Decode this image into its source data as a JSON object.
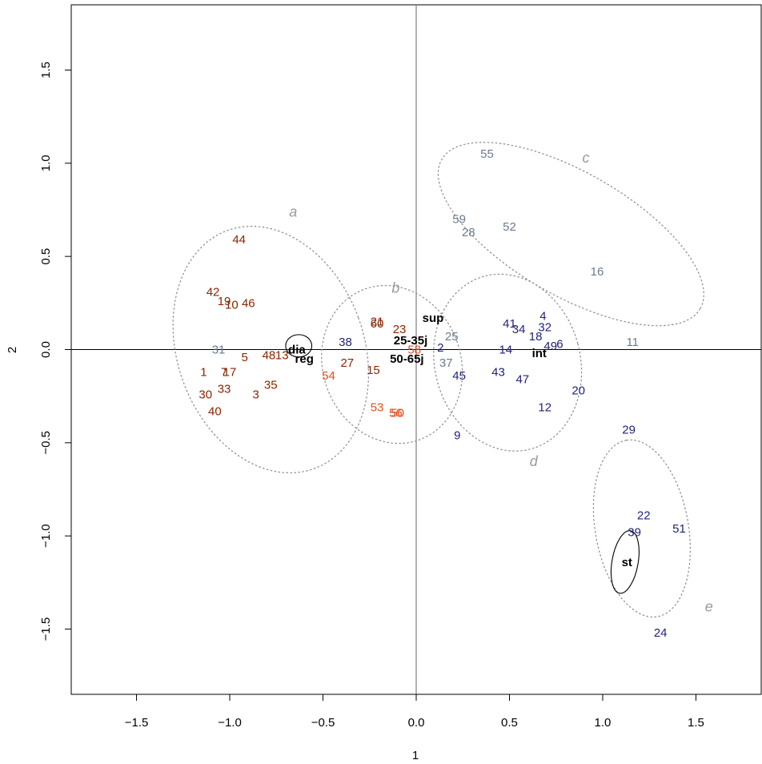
{
  "chart_data": {
    "type": "scatter",
    "xlabel": "1",
    "ylabel": "2",
    "xlim": [
      -1.85,
      1.85
    ],
    "ylim": [
      -1.85,
      1.85
    ],
    "xticks": [
      -1.5,
      -1.0,
      -0.5,
      0.0,
      0.5,
      1.0,
      1.5
    ],
    "yticks": [
      -1.5,
      -1.0,
      -0.5,
      0.0,
      0.5,
      1.0,
      1.5
    ],
    "xtick_labels": [
      "−1.5",
      "−1.0",
      "−0.5",
      "0.0",
      "0.5",
      "1.0",
      "1.5"
    ],
    "ytick_labels": [
      "−1.5",
      "−1.0",
      "−0.5",
      "0.0",
      "0.5",
      "1.0",
      "1.5"
    ],
    "grid": false,
    "reference_lines": {
      "x": 0,
      "y": 0
    },
    "colors": {
      "dark_red": "#8b2500",
      "orange_red": "#e2501d",
      "slate": "#6c7c90",
      "navy": "#23237a",
      "group_ellipse": "#8c8c8c",
      "group_label": "#9a9a9a",
      "variable": "#000000"
    },
    "points": [
      {
        "label": "44",
        "x": -0.95,
        "y": 0.59,
        "color": "dark_red"
      },
      {
        "label": "42",
        "x": -1.09,
        "y": 0.31,
        "color": "dark_red"
      },
      {
        "label": "19",
        "x": -1.03,
        "y": 0.26,
        "color": "dark_red"
      },
      {
        "label": "10",
        "x": -0.99,
        "y": 0.24,
        "color": "dark_red"
      },
      {
        "label": "46",
        "x": -0.9,
        "y": 0.25,
        "color": "dark_red"
      },
      {
        "label": "5",
        "x": -0.92,
        "y": -0.04,
        "color": "dark_red"
      },
      {
        "label": "48",
        "x": -0.79,
        "y": -0.03,
        "color": "dark_red"
      },
      {
        "label": "13",
        "x": -0.72,
        "y": -0.03,
        "color": "dark_red"
      },
      {
        "label": "1",
        "x": -1.14,
        "y": -0.12,
        "color": "dark_red"
      },
      {
        "label": "7",
        "x": -1.03,
        "y": -0.12,
        "color": "dark_red"
      },
      {
        "label": "17",
        "x": -1.0,
        "y": -0.12,
        "color": "dark_red"
      },
      {
        "label": "30",
        "x": -1.13,
        "y": -0.24,
        "color": "dark_red"
      },
      {
        "label": "33",
        "x": -1.03,
        "y": -0.21,
        "color": "dark_red"
      },
      {
        "label": "3",
        "x": -0.86,
        "y": -0.24,
        "color": "dark_red"
      },
      {
        "label": "35",
        "x": -0.78,
        "y": -0.19,
        "color": "dark_red"
      },
      {
        "label": "40",
        "x": -1.08,
        "y": -0.33,
        "color": "dark_red"
      },
      {
        "label": "31",
        "x": -1.06,
        "y": 0.0,
        "color": "slate"
      },
      {
        "label": "21",
        "x": -0.21,
        "y": 0.15,
        "color": "dark_red"
      },
      {
        "label": "60",
        "x": -0.21,
        "y": 0.14,
        "color": "dark_red"
      },
      {
        "label": "23",
        "x": -0.09,
        "y": 0.11,
        "color": "dark_red"
      },
      {
        "label": "27",
        "x": -0.37,
        "y": -0.07,
        "color": "dark_red"
      },
      {
        "label": "15",
        "x": -0.23,
        "y": -0.11,
        "color": "dark_red"
      },
      {
        "label": "54",
        "x": -0.47,
        "y": -0.14,
        "color": "orange_red"
      },
      {
        "label": "53",
        "x": -0.21,
        "y": -0.31,
        "color": "orange_red"
      },
      {
        "label": "56",
        "x": -0.11,
        "y": -0.34,
        "color": "orange_red"
      },
      {
        "label": "50",
        "x": -0.1,
        "y": -0.34,
        "color": "orange_red"
      },
      {
        "label": "58",
        "x": -0.01,
        "y": 0.0,
        "color": "orange_red"
      },
      {
        "label": "38",
        "x": -0.38,
        "y": 0.04,
        "color": "navy"
      },
      {
        "label": "55",
        "x": 0.38,
        "y": 1.05,
        "color": "slate"
      },
      {
        "label": "59",
        "x": 0.23,
        "y": 0.7,
        "color": "slate"
      },
      {
        "label": "28",
        "x": 0.28,
        "y": 0.63,
        "color": "slate"
      },
      {
        "label": "52",
        "x": 0.5,
        "y": 0.66,
        "color": "slate"
      },
      {
        "label": "16",
        "x": 0.97,
        "y": 0.42,
        "color": "slate"
      },
      {
        "label": "25",
        "x": 0.19,
        "y": 0.07,
        "color": "slate"
      },
      {
        "label": "11",
        "x": 1.16,
        "y": 0.04,
        "color": "slate"
      },
      {
        "label": "2",
        "x": 0.13,
        "y": 0.01,
        "color": "navy"
      },
      {
        "label": "37",
        "x": 0.16,
        "y": -0.07,
        "color": "slate"
      },
      {
        "label": "45",
        "x": 0.23,
        "y": -0.14,
        "color": "navy"
      },
      {
        "label": "9",
        "x": 0.22,
        "y": -0.46,
        "color": "navy"
      },
      {
        "label": "41",
        "x": 0.5,
        "y": 0.14,
        "color": "navy"
      },
      {
        "label": "34",
        "x": 0.55,
        "y": 0.11,
        "color": "navy"
      },
      {
        "label": "4",
        "x": 0.68,
        "y": 0.18,
        "color": "navy"
      },
      {
        "label": "32",
        "x": 0.69,
        "y": 0.12,
        "color": "navy"
      },
      {
        "label": "18",
        "x": 0.64,
        "y": 0.07,
        "color": "navy"
      },
      {
        "label": "14",
        "x": 0.48,
        "y": 0.0,
        "color": "navy"
      },
      {
        "label": "49",
        "x": 0.72,
        "y": 0.02,
        "color": "navy"
      },
      {
        "label": "6",
        "x": 0.77,
        "y": 0.03,
        "color": "navy"
      },
      {
        "label": "43",
        "x": 0.44,
        "y": -0.12,
        "color": "navy"
      },
      {
        "label": "47",
        "x": 0.57,
        "y": -0.16,
        "color": "navy"
      },
      {
        "label": "20",
        "x": 0.87,
        "y": -0.22,
        "color": "navy"
      },
      {
        "label": "12",
        "x": 0.69,
        "y": -0.31,
        "color": "navy"
      },
      {
        "label": "29",
        "x": 1.14,
        "y": -0.43,
        "color": "navy"
      },
      {
        "label": "22",
        "x": 1.22,
        "y": -0.89,
        "color": "navy"
      },
      {
        "label": "39",
        "x": 1.17,
        "y": -0.98,
        "color": "navy"
      },
      {
        "label": "51",
        "x": 1.41,
        "y": -0.96,
        "color": "navy"
      },
      {
        "label": "24",
        "x": 1.31,
        "y": -1.52,
        "color": "navy"
      }
    ],
    "variables": [
      {
        "label": "dia",
        "x": -0.64,
        "y": 0.0
      },
      {
        "label": "reg",
        "x": -0.6,
        "y": -0.05
      },
      {
        "label": "sup",
        "x": 0.09,
        "y": 0.17
      },
      {
        "label": "25-35j",
        "x": -0.03,
        "y": 0.05
      },
      {
        "label": "50-65j",
        "x": -0.05,
        "y": -0.05
      },
      {
        "label": "int",
        "x": 0.66,
        "y": -0.02
      },
      {
        "label": "st",
        "x": 1.13,
        "y": -1.14
      }
    ],
    "variable_ellipses": [
      {
        "cx": -0.63,
        "cy": 0.02,
        "rx": 0.07,
        "ry": 0.06,
        "angle": 0
      },
      {
        "cx": 1.12,
        "cy": -1.14,
        "rx": 0.07,
        "ry": 0.17,
        "angle": -10
      }
    ],
    "groups": [
      {
        "label": "a",
        "cx": -0.78,
        "cy": 0.0,
        "rx": 0.5,
        "ry": 0.68,
        "angle": 20,
        "label_x": -0.66,
        "label_y": 0.74
      },
      {
        "label": "b",
        "cx": -0.13,
        "cy": -0.08,
        "rx": 0.37,
        "ry": 0.43,
        "angle": 20,
        "label_x": -0.11,
        "label_y": 0.33
      },
      {
        "label": "c",
        "cx": 0.83,
        "cy": 0.62,
        "rx": 0.8,
        "ry": 0.33,
        "angle": -30,
        "label_x": 0.91,
        "label_y": 1.03
      },
      {
        "label": "d",
        "cx": 0.49,
        "cy": -0.07,
        "rx": 0.39,
        "ry": 0.48,
        "angle": 15,
        "label_x": 0.63,
        "label_y": -0.6
      },
      {
        "label": "e",
        "cx": 1.21,
        "cy": -0.96,
        "rx": 0.48,
        "ry": 0.25,
        "angle": 100,
        "label_x": 1.57,
        "label_y": -1.38
      }
    ]
  }
}
